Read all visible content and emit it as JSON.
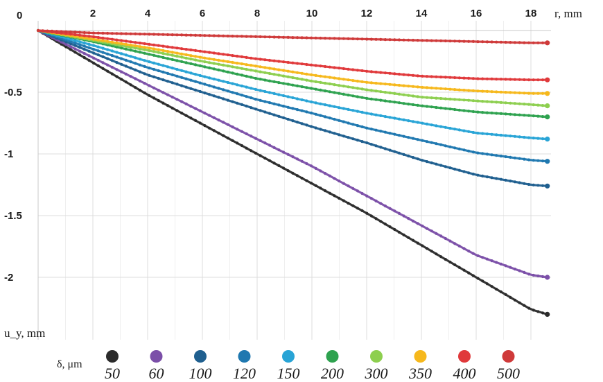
{
  "chart_data": {
    "type": "line",
    "x_axis": {
      "label": "r, mm",
      "ticks": [
        2,
        4,
        6,
        8,
        10,
        12,
        14,
        16,
        18
      ],
      "range": [
        0,
        18.6
      ],
      "position": "top"
    },
    "y_axis": {
      "label": "u_y, mm",
      "ticks": [
        0,
        -0.5,
        -1,
        -1.5,
        -2
      ],
      "tick_labels": [
        "0",
        "-0.5",
        "-1",
        "-1.5",
        "-2"
      ],
      "range": [
        0,
        -2.45
      ]
    },
    "grid": true,
    "legend": {
      "title": "δ, μm",
      "placement": "bottom"
    },
    "x_points": [
      0,
      2,
      4,
      6,
      8,
      10,
      12,
      14,
      16,
      18,
      18.6
    ],
    "series": [
      {
        "name": "50",
        "color": "#2b2b2b",
        "values": [
          0,
          -0.26,
          -0.52,
          -0.76,
          -1.0,
          -1.24,
          -1.48,
          -1.74,
          -2.0,
          -2.26,
          -2.3
        ]
      },
      {
        "name": "60",
        "color": "#7b4fa8",
        "values": [
          0,
          -0.22,
          -0.44,
          -0.66,
          -0.88,
          -1.1,
          -1.34,
          -1.58,
          -1.82,
          -1.98,
          -2.0
        ]
      },
      {
        "name": "100",
        "color": "#1f5f8f",
        "values": [
          0,
          -0.18,
          -0.36,
          -0.5,
          -0.64,
          -0.78,
          -0.91,
          -1.05,
          -1.17,
          -1.25,
          -1.26
        ]
      },
      {
        "name": "120",
        "color": "#1f78b0",
        "values": [
          0,
          -0.15,
          -0.3,
          -0.43,
          -0.56,
          -0.67,
          -0.79,
          -0.89,
          -0.99,
          -1.05,
          -1.06
        ]
      },
      {
        "name": "150",
        "color": "#28a4d6",
        "values": [
          0,
          -0.12,
          -0.25,
          -0.37,
          -0.48,
          -0.58,
          -0.67,
          -0.75,
          -0.83,
          -0.87,
          -0.88
        ]
      },
      {
        "name": "200",
        "color": "#2ea24f",
        "values": [
          0,
          -0.09,
          -0.19,
          -0.29,
          -0.39,
          -0.47,
          -0.55,
          -0.61,
          -0.66,
          -0.69,
          -0.7
        ]
      },
      {
        "name": "300",
        "color": "#8dcf4f",
        "values": [
          0,
          -0.08,
          -0.16,
          -0.25,
          -0.33,
          -0.41,
          -0.48,
          -0.54,
          -0.57,
          -0.6,
          -0.61
        ]
      },
      {
        "name": "350",
        "color": "#f6b81c",
        "values": [
          0,
          -0.07,
          -0.14,
          -0.22,
          -0.29,
          -0.36,
          -0.42,
          -0.46,
          -0.49,
          -0.51,
          -0.51
        ]
      },
      {
        "name": "400",
        "color": "#e0393b",
        "values": [
          0,
          -0.05,
          -0.11,
          -0.17,
          -0.23,
          -0.28,
          -0.33,
          -0.37,
          -0.39,
          -0.4,
          -0.4
        ]
      },
      {
        "name": "500",
        "color": "#cf3a3a",
        "values": [
          0,
          -0.02,
          -0.03,
          -0.04,
          -0.05,
          -0.06,
          -0.07,
          -0.08,
          -0.09,
          -0.1,
          -0.1
        ]
      }
    ]
  }
}
